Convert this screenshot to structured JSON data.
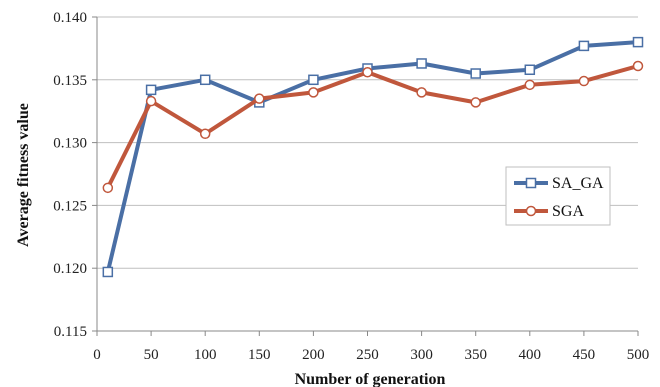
{
  "chart_data": {
    "type": "line",
    "title": "",
    "xlabel": "Number of generation",
    "ylabel": "Average fitness value",
    "x": [
      10,
      50,
      100,
      150,
      200,
      250,
      300,
      350,
      400,
      450,
      500
    ],
    "xticks": [
      "0",
      "50",
      "100",
      "150",
      "200",
      "250",
      "300",
      "350",
      "400",
      "450",
      "500"
    ],
    "xtick_values": [
      0,
      50,
      100,
      150,
      200,
      250,
      300,
      350,
      400,
      450,
      500
    ],
    "yticks": [
      "0.115",
      "0.120",
      "0.125",
      "0.130",
      "0.135",
      "0.140"
    ],
    "ytick_values": [
      0.115,
      0.12,
      0.125,
      0.13,
      0.135,
      0.14
    ],
    "xlim": [
      0,
      500
    ],
    "ylim": [
      0.115,
      0.14
    ],
    "grid": "horizontal",
    "legend_position": "right",
    "series": [
      {
        "name": "SA_GA",
        "color": "#4a6fa5",
        "marker": "square",
        "values": [
          0.1197,
          0.1342,
          0.135,
          0.1332,
          0.135,
          0.1359,
          0.1363,
          0.1355,
          0.1358,
          0.1377,
          0.138
        ]
      },
      {
        "name": "SGA",
        "color": "#c0573c",
        "marker": "circle",
        "values": [
          0.1264,
          0.1333,
          0.1307,
          0.1335,
          0.134,
          0.1356,
          0.134,
          0.1332,
          0.1346,
          0.1349,
          0.1361
        ]
      }
    ]
  }
}
